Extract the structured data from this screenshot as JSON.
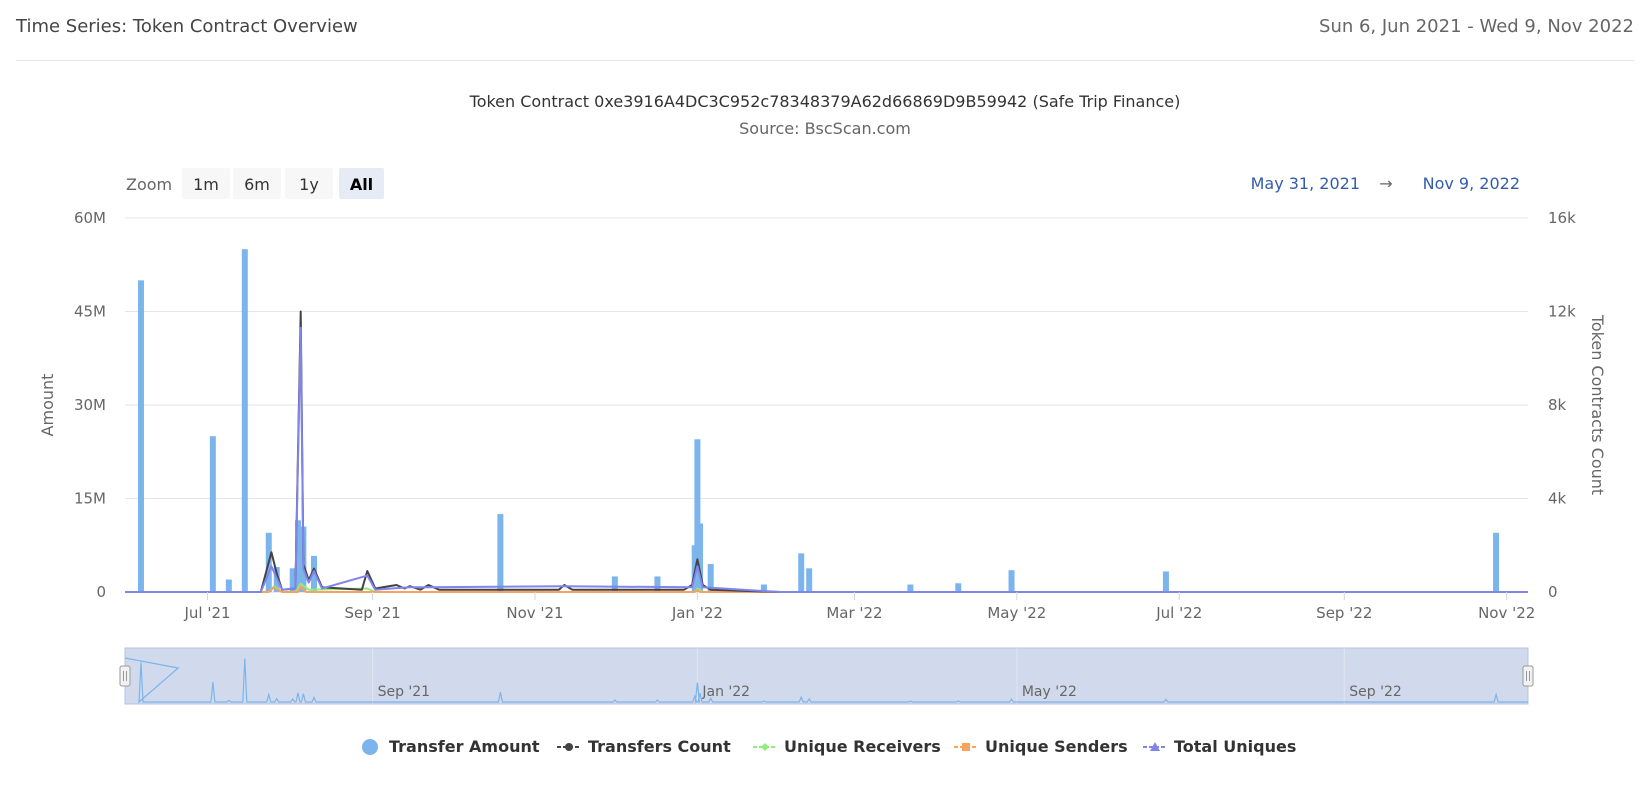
{
  "header": {
    "title": "Time Series: Token Contract Overview",
    "date_range": "Sun 6, Jun 2021 - Wed 9, Nov 2022"
  },
  "zoom": {
    "label": "Zoom",
    "buttons": [
      "1m",
      "6m",
      "1y",
      "All"
    ],
    "active": "All"
  },
  "range_selector": {
    "from": "May 31, 2021",
    "arrow": "→",
    "to": "Nov 9, 2022"
  },
  "colors": {
    "transfer_amount": "#7cb5ec",
    "transfers_count": "#434348",
    "unique_receivers": "#90ed7d",
    "unique_senders": "#f7a35c",
    "total_uniques": "#8085e9",
    "navigator_fill": "#ccd6eb",
    "range_text": "#335cad"
  },
  "chart_data": {
    "type": "bar",
    "title": "Token Contract 0xe3916A4DC3C952c78348379A62d66869D9B59942 (Safe Trip Finance)",
    "subtitle": "Source: BscScan.com",
    "ylabel": "Amount",
    "y2label": "Token Contracts Count",
    "ylim": [
      0,
      60000000
    ],
    "y2lim": [
      0,
      16000
    ],
    "yticks": [
      "0",
      "15M",
      "30M",
      "45M",
      "60M"
    ],
    "y2ticks": [
      "0",
      "4k",
      "8k",
      "12k",
      "16k"
    ],
    "xlim": [
      "2021-05-31",
      "2022-11-09"
    ],
    "xticks": [
      "Jul '21",
      "Sep '21",
      "Nov '21",
      "Jan '22",
      "Mar '22",
      "May '22",
      "Jul '22",
      "Sep '22",
      "Nov '22"
    ],
    "navigator_labels": [
      "Sep '21",
      "Jan '22",
      "May '22",
      "Sep '22"
    ],
    "legend": [
      "Transfer Amount",
      "Transfers Count",
      "Unique Receivers",
      "Unique Senders",
      "Total Uniques"
    ],
    "grid": true,
    "legend_position": "bottom",
    "bars": {
      "name": "Transfer Amount",
      "points": [
        [
          "2021-06-06",
          50000000
        ],
        [
          "2021-07-03",
          25000000
        ],
        [
          "2021-07-09",
          2000000
        ],
        [
          "2021-07-15",
          55000000
        ],
        [
          "2021-07-24",
          9500000
        ],
        [
          "2021-07-27",
          4000000
        ],
        [
          "2021-08-02",
          3800000
        ],
        [
          "2021-08-04",
          11500000
        ],
        [
          "2021-08-06",
          10500000
        ],
        [
          "2021-08-10",
          5800000
        ],
        [
          "2021-10-19",
          12500000
        ],
        [
          "2021-12-01",
          2500000
        ],
        [
          "2021-12-17",
          2500000
        ],
        [
          "2021-12-31",
          7500000
        ],
        [
          "2022-01-01",
          24500000
        ],
        [
          "2022-01-02",
          11000000
        ],
        [
          "2022-01-06",
          4500000
        ],
        [
          "2022-01-26",
          1200000
        ],
        [
          "2022-02-09",
          6200000
        ],
        [
          "2022-02-12",
          3800000
        ],
        [
          "2022-03-22",
          1200000
        ],
        [
          "2022-04-09",
          1400000
        ],
        [
          "2022-04-29",
          3500000
        ],
        [
          "2022-06-26",
          3300000
        ],
        [
          "2022-10-28",
          9500000
        ]
      ]
    },
    "series": [
      {
        "name": "Transfers Count",
        "points": [
          [
            "2021-05-31",
            0
          ],
          [
            "2021-07-21",
            0
          ],
          [
            "2021-07-25",
            1700
          ],
          [
            "2021-07-27",
            800
          ],
          [
            "2021-07-29",
            100
          ],
          [
            "2021-08-03",
            150
          ],
          [
            "2021-08-05",
            12000
          ],
          [
            "2021-08-06",
            1200
          ],
          [
            "2021-08-08",
            500
          ],
          [
            "2021-08-10",
            1000
          ],
          [
            "2021-08-13",
            200
          ],
          [
            "2021-08-28",
            100
          ],
          [
            "2021-08-30",
            900
          ],
          [
            "2021-09-02",
            150
          ],
          [
            "2021-09-10",
            300
          ],
          [
            "2021-09-13",
            150
          ],
          [
            "2021-09-15",
            250
          ],
          [
            "2021-09-19",
            100
          ],
          [
            "2021-09-22",
            300
          ],
          [
            "2021-09-26",
            100
          ],
          [
            "2021-10-19",
            100
          ],
          [
            "2021-11-10",
            100
          ],
          [
            "2021-11-12",
            300
          ],
          [
            "2021-11-15",
            100
          ],
          [
            "2021-12-27",
            100
          ],
          [
            "2021-12-30",
            300
          ],
          [
            "2022-01-01",
            1400
          ],
          [
            "2022-01-03",
            300
          ],
          [
            "2022-01-06",
            100
          ],
          [
            "2022-02-01",
            0
          ],
          [
            "2022-11-09",
            0
          ]
        ]
      },
      {
        "name": "Unique Receivers",
        "points": [
          [
            "2021-05-31",
            0
          ],
          [
            "2021-07-24",
            0
          ],
          [
            "2021-07-26",
            250
          ],
          [
            "2021-07-29",
            0
          ],
          [
            "2021-08-03",
            0
          ],
          [
            "2021-08-05",
            350
          ],
          [
            "2021-08-08",
            100
          ],
          [
            "2021-08-30",
            150
          ],
          [
            "2021-09-02",
            0
          ],
          [
            "2021-12-31",
            0
          ],
          [
            "2022-01-01",
            150
          ],
          [
            "2022-01-03",
            0
          ],
          [
            "2022-11-09",
            0
          ]
        ]
      },
      {
        "name": "Unique Senders",
        "points": [
          [
            "2021-05-31",
            0
          ],
          [
            "2021-07-24",
            0
          ],
          [
            "2021-07-26",
            200
          ],
          [
            "2021-07-29",
            0
          ],
          [
            "2021-08-04",
            0
          ],
          [
            "2021-08-05",
            250
          ],
          [
            "2021-08-07",
            0
          ],
          [
            "2021-12-31",
            0
          ],
          [
            "2022-01-01",
            100
          ],
          [
            "2022-01-02",
            0
          ],
          [
            "2022-11-09",
            0
          ]
        ]
      },
      {
        "name": "Total Uniques",
        "points": [
          [
            "2021-05-31",
            0
          ],
          [
            "2021-07-21",
            0
          ],
          [
            "2021-07-25",
            1100
          ],
          [
            "2021-07-27",
            600
          ],
          [
            "2021-07-29",
            100
          ],
          [
            "2021-08-03",
            150
          ],
          [
            "2021-08-05",
            11300
          ],
          [
            "2021-08-06",
            1000
          ],
          [
            "2021-08-08",
            400
          ],
          [
            "2021-08-10",
            900
          ],
          [
            "2021-08-13",
            150
          ],
          [
            "2021-08-30",
            700
          ],
          [
            "2021-09-02",
            100
          ],
          [
            "2021-09-15",
            200
          ],
          [
            "2021-09-22",
            200
          ],
          [
            "2021-11-12",
            250
          ],
          [
            "2021-12-30",
            200
          ],
          [
            "2022-01-01",
            1100
          ],
          [
            "2022-01-03",
            200
          ],
          [
            "2022-02-01",
            0
          ],
          [
            "2022-11-09",
            0
          ]
        ]
      }
    ]
  }
}
